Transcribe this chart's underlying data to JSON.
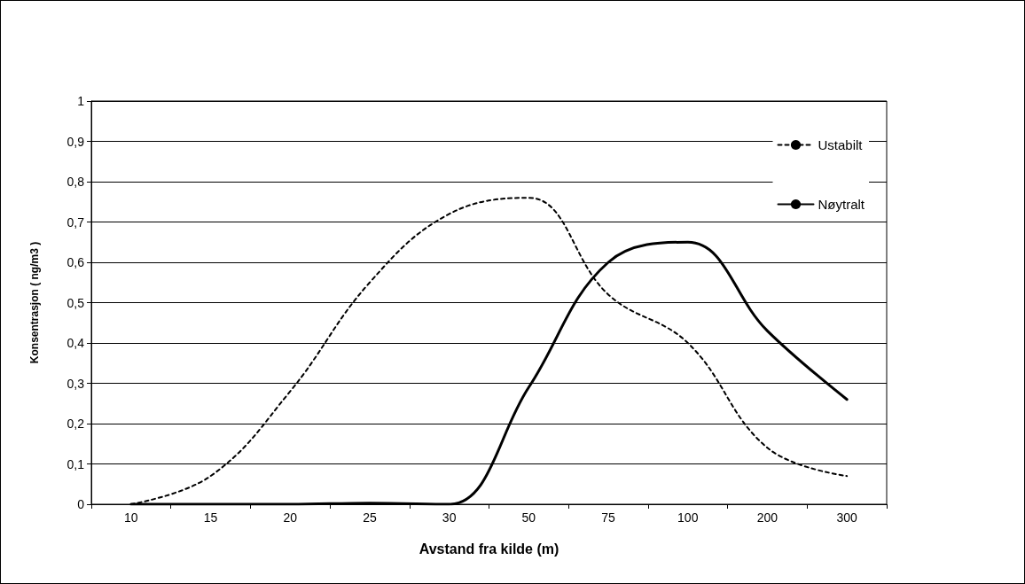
{
  "chart_data": {
    "type": "line",
    "xlabel": "Avstand fra kilde (m)",
    "ylabel": "Konsentrasjon ( ng/m3 )",
    "categories": [
      "10",
      "15",
      "20",
      "25",
      "30",
      "50",
      "75",
      "100",
      "200",
      "300"
    ],
    "series": [
      {
        "name": "Ustabilt",
        "color": "#000000",
        "line_style": "dotted",
        "values": [
          0,
          0.07,
          0.28,
          0.55,
          0.72,
          0.76,
          0.52,
          0.4,
          0.14,
          0.07
        ]
      },
      {
        "name": "Nøytralt",
        "color": "#000000",
        "line_style": "solid",
        "values": [
          0,
          0,
          0,
          0.003,
          0,
          0.29,
          0.6,
          0.65,
          0.43,
          0.26
        ]
      }
    ],
    "ylim": [
      0,
      1
    ],
    "yticks": [
      0,
      {
        "value": 0.1,
        "label": "0,1"
      },
      {
        "value": 0.2,
        "label": "0,2"
      },
      {
        "value": 0.3,
        "label": "0,3"
      },
      {
        "value": 0.4,
        "label": "0,4"
      },
      {
        "value": 0.5,
        "label": "0,5"
      },
      {
        "value": 0.6,
        "label": "0,6"
      },
      {
        "value": 0.7,
        "label": "0,7"
      },
      {
        "value": 0.8,
        "label": "0,8"
      },
      {
        "value": 0.9,
        "label": "0,9"
      },
      1
    ],
    "grid": "y",
    "legend": "top right",
    "marker": "none"
  }
}
